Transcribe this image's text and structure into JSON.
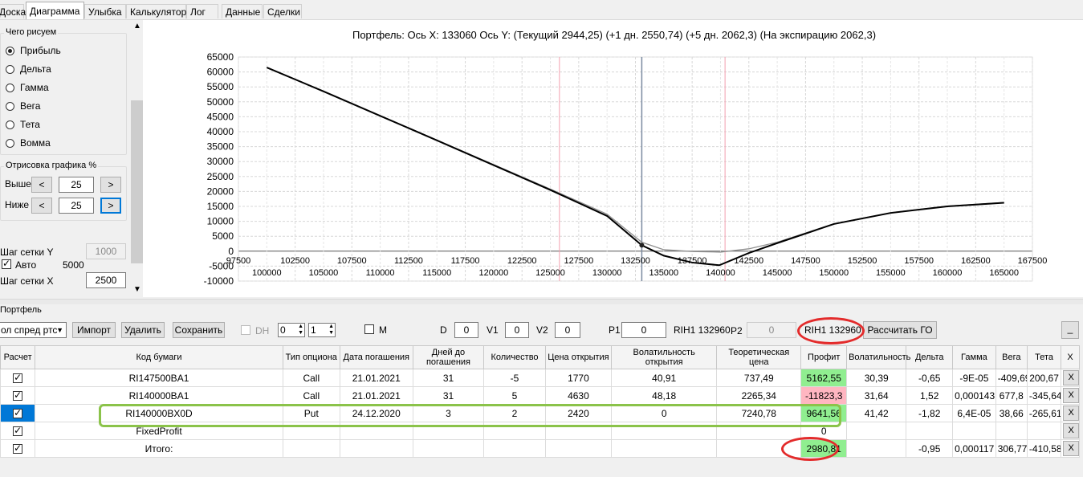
{
  "tabs": [
    {
      "label": "Доска",
      "active": false
    },
    {
      "label": "Диаграмма",
      "active": true
    },
    {
      "label": "Улыбка",
      "active": false
    },
    {
      "label": "Калькулятор",
      "active": false
    },
    {
      "label": "Лог",
      "active": false
    },
    {
      "label": "Данные",
      "active": false
    },
    {
      "label": "Сделки",
      "active": false
    }
  ],
  "left": {
    "draw_group_title": "Чего рисуем",
    "radios": [
      {
        "label": "Прибыль",
        "checked": true
      },
      {
        "label": "Дельта",
        "checked": false
      },
      {
        "label": "Гамма",
        "checked": false
      },
      {
        "label": "Вега",
        "checked": false
      },
      {
        "label": "Тета",
        "checked": false
      },
      {
        "label": "Вомма",
        "checked": false
      }
    ],
    "render_group_title": "Отрисовка графика %",
    "above_label": "Выше",
    "above_value": "25",
    "below_label": "Ниже",
    "below_value": "25",
    "dec_glyph": "<",
    "inc_glyph": ">",
    "grid_y_label": "Шаг сетки Y",
    "grid_y_value": "1000",
    "auto_label": "Авто",
    "auto_value": "5000",
    "grid_x_label": "Шаг сетки X",
    "grid_x_value": "2500"
  },
  "chart_data": {
    "type": "line",
    "title": "Портфель: Ось X: 133060 Ось Y:  (Текущий 2944,25)  (+1 дн. 2550,74)  (+5 дн. 2062,3)  (На экспирацию 2062,3)",
    "ylim": [
      -10000,
      65000
    ],
    "xlim": [
      97500,
      167500
    ],
    "y_ticks": [
      "65000",
      "60000",
      "55000",
      "50000",
      "45000",
      "40000",
      "35000",
      "30000",
      "25000",
      "20000",
      "15000",
      "10000",
      "5000",
      "0",
      "-5000",
      "-10000"
    ],
    "x_ticks_upper": [
      "97500",
      "102500",
      "107500",
      "112500",
      "117500",
      "122500",
      "127500",
      "132500",
      "137500",
      "142500",
      "147500",
      "152500",
      "157500",
      "162500",
      "167500"
    ],
    "x_ticks_lower": [
      "100000",
      "105000",
      "110000",
      "115000",
      "120000",
      "125000",
      "130000",
      "135000",
      "140000",
      "145000",
      "150000",
      "155000",
      "160000",
      "165000"
    ],
    "grid": true,
    "current_x": 133060,
    "range_lines_x": [
      125800,
      140400
    ],
    "series": [
      {
        "color": "#000000",
        "x": [
          100000,
          105000,
          110000,
          115000,
          120000,
          125000,
          130000,
          133060,
          135000,
          137500,
          139900,
          142500,
          145000,
          150000,
          155000,
          160000,
          165000
        ],
        "y": [
          61500,
          53500,
          45300,
          37100,
          28800,
          20500,
          11800,
          2000,
          -1500,
          -3800,
          -4700,
          -600,
          2700,
          9100,
          12800,
          15000,
          16200
        ]
      },
      {
        "color": "#909090",
        "x": [
          100000,
          105000,
          110000,
          115000,
          120000,
          125000,
          130000,
          133060,
          135000,
          137500,
          140000,
          142500,
          145000,
          150000,
          155000,
          160000,
          165000
        ],
        "y": [
          61500,
          53600,
          45400,
          37200,
          29000,
          20800,
          12400,
          3000,
          500,
          -100,
          -300,
          800,
          3000,
          9200,
          12900,
          15100,
          16300
        ]
      }
    ]
  },
  "portfolio": {
    "title": "Портфель",
    "strategy_select": "ол спред ртс",
    "import_label": "Импорт",
    "delete_label": "Удалить",
    "save_label": "Сохранить",
    "dh_label": "DH",
    "spin1": "0",
    "spin2": "1",
    "m_label": "M",
    "d_label": "D",
    "d_value": "0",
    "v1_label": "V1",
    "v1_value": "0",
    "v2_label": "V2",
    "v2_value": "0",
    "p1_label": "P1",
    "p1_value": "0",
    "p1_ticker": "RIH1 132960",
    "p2_label": "P2",
    "p2_value": "0",
    "p2_ticker": "RIH1 132960",
    "calc_go_label": "Рассчитать ГО",
    "minimize_label": "_"
  },
  "table": {
    "headers": [
      "Расчет",
      "Код бумаги",
      "Тип опциона",
      "Дата погашения",
      "Дней до погашения",
      "Количество",
      "Цена открытия",
      "Волатильность открытия",
      "Теоретическая цена",
      "Профит",
      "Волатильность",
      "Дельта",
      "Гамма",
      "Вега",
      "Тета",
      "X"
    ],
    "rows": [
      {
        "code": "RI147500BA1",
        "type": "Call",
        "date": "21.01.2021",
        "days": "31",
        "qty": "-5",
        "open": "1770",
        "vol_open": "40,91",
        "theo": "737,49",
        "profit": "5162,55",
        "vol": "30,39",
        "delta": "-0,65",
        "gamma": "-9E-05",
        "vega": "-409,69",
        "theta": "200,67",
        "x": "X"
      },
      {
        "code": "RI140000BA1",
        "type": "Call",
        "date": "21.01.2021",
        "days": "31",
        "qty": "5",
        "open": "4630",
        "vol_open": "48,18",
        "theo": "2265,34",
        "profit": "-11823,3",
        "vol": "31,64",
        "delta": "1,52",
        "gamma": "0,000143",
        "vega": "677,8",
        "theta": "-345,64",
        "x": "X"
      },
      {
        "code": "RI140000BX0D",
        "type": "Put",
        "date": "24.12.2020",
        "days": "3",
        "qty": "2",
        "open": "2420",
        "vol_open": "0",
        "theo": "7240,78",
        "profit": "9641,56",
        "vol": "41,42",
        "delta": "-1,82",
        "gamma": "6,4E-05",
        "vega": "38,66",
        "theta": "-265,61",
        "x": "X"
      },
      {
        "code": "FixedProfit",
        "type": "",
        "date": "",
        "days": "",
        "qty": "",
        "open": "",
        "vol_open": "",
        "theo": "",
        "profit": "0",
        "vol": "",
        "delta": "",
        "gamma": "",
        "vega": "",
        "theta": "",
        "x": "X"
      },
      {
        "code": "Итого:",
        "type": "",
        "date": "",
        "days": "",
        "qty": "",
        "open": "",
        "vol_open": "",
        "theo": "",
        "profit": "2980,81",
        "vol": "",
        "delta": "-0,95",
        "gamma": "0,000117",
        "vega": "306,77",
        "theta": "-410,58",
        "x": "X"
      }
    ]
  }
}
